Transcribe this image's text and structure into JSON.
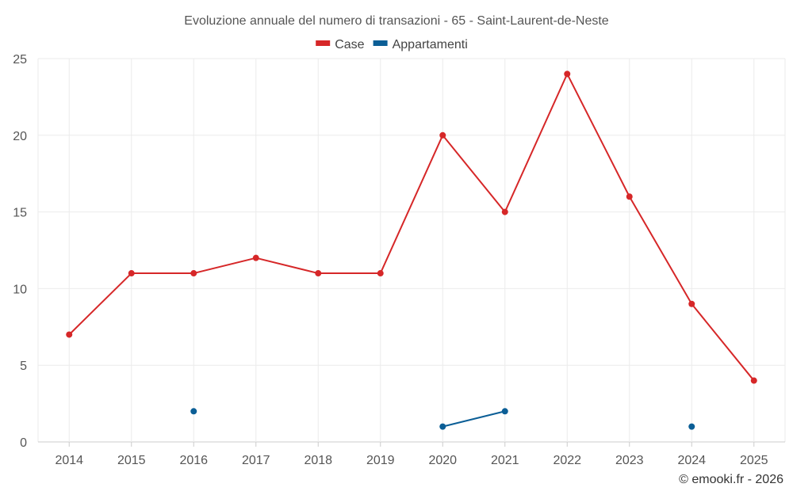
{
  "chart_data": {
    "type": "line",
    "title": "Evoluzione annuale del numero di transazioni - 65 - Saint-Laurent-de-Neste",
    "categories": [
      "2014",
      "2015",
      "2016",
      "2017",
      "2018",
      "2019",
      "2020",
      "2021",
      "2022",
      "2023",
      "2024",
      "2025"
    ],
    "series": [
      {
        "name": "Case",
        "color": "#d62728",
        "values": [
          7,
          11,
          11,
          12,
          11,
          11,
          20,
          15,
          24,
          16,
          9,
          4
        ]
      },
      {
        "name": "Appartamenti",
        "color": "#0b5e96",
        "values": [
          null,
          null,
          2,
          null,
          null,
          null,
          1,
          2,
          null,
          null,
          1,
          null
        ]
      }
    ],
    "ylim": [
      0,
      25
    ],
    "yticks": [
      0,
      5,
      10,
      15,
      20,
      25
    ],
    "xlabel": "",
    "ylabel": "",
    "grid": true,
    "legend": "top-center"
  },
  "credit": "© emooki.fr - 2026"
}
